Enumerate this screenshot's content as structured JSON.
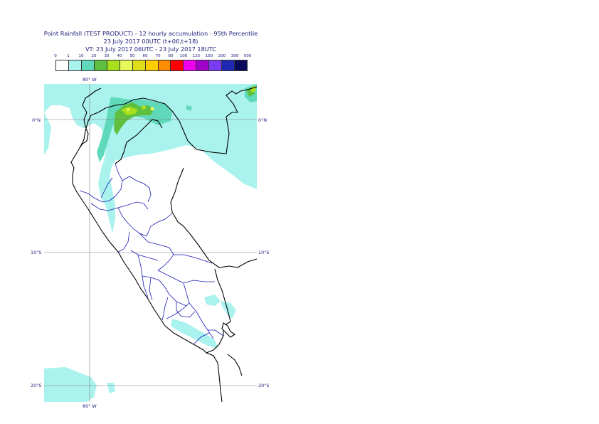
{
  "title": {
    "line1": "Point Rainfall (TEST PRODUCT) - 12 hourly accumulation - 95th Percentile",
    "line2": "23 July 2017 00UTC (t+06,t+18)",
    "line3": "VT: 23 July 2017 06UTC - 23 July 2017 18UTC"
  },
  "legend": {
    "ticks": [
      "0",
      "1",
      "10",
      "20",
      "30",
      "40",
      "50",
      "60",
      "70",
      "80",
      "100",
      "125",
      "150",
      "200",
      "300",
      "500"
    ],
    "colors": [
      "#ffffff",
      "#aaf2ee",
      "#5fd9b9",
      "#5fbf3f",
      "#a8e01e",
      "#e6f85a",
      "#dede1a",
      "#ffcc00",
      "#ff8c00",
      "#ff0000",
      "#ee00ee",
      "#a000c8",
      "#7a3cf0",
      "#1e28b4",
      "#0a0a5a"
    ]
  },
  "axes": {
    "top_lon": "80° W",
    "bottom_lon": "80° W",
    "lat_labels_left": [
      "0°N",
      "10°S",
      "20°S"
    ],
    "lat_labels_right": [
      "0°N",
      "10°S",
      "20°S"
    ]
  }
}
